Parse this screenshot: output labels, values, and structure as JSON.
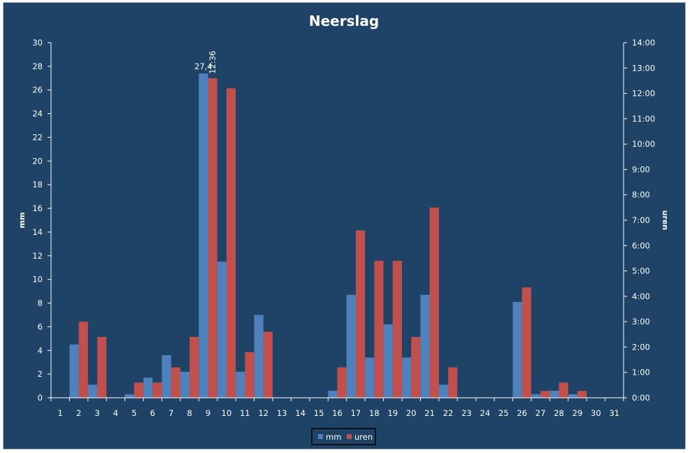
{
  "chart_data": {
    "type": "bar",
    "title": "Neerslag",
    "ylabel": "mm",
    "y2label": "uren",
    "ylim": [
      0,
      30
    ],
    "y2lim": [
      0,
      14
    ],
    "yticks": [
      "0",
      "2",
      "4",
      "6",
      "8",
      "10",
      "12",
      "14",
      "16",
      "18",
      "20",
      "22",
      "24",
      "26",
      "28",
      "30"
    ],
    "y2ticks": [
      "0:00",
      "1:00",
      "2:00",
      "3:00",
      "4:00",
      "5:00",
      "6:00",
      "7:00",
      "8:00",
      "9:00",
      "10:00",
      "11:00",
      "12:00",
      "13:00",
      "14:00"
    ],
    "categories": [
      "1",
      "2",
      "3",
      "4",
      "5",
      "6",
      "7",
      "8",
      "9",
      "10",
      "11",
      "12",
      "13",
      "14",
      "15",
      "16",
      "17",
      "18",
      "19",
      "20",
      "21",
      "22",
      "23",
      "24",
      "25",
      "26",
      "27",
      "28",
      "29",
      "30",
      "31"
    ],
    "series": [
      {
        "name": "mm",
        "color": "#4f81bd",
        "axis": "left",
        "values": [
          0,
          4.5,
          1.1,
          0,
          0.3,
          1.7,
          3.6,
          2.2,
          27.4,
          11.5,
          2.2,
          7.0,
          0,
          0,
          0,
          0.6,
          8.7,
          3.4,
          6.2,
          3.4,
          8.7,
          1.1,
          0,
          0,
          0,
          8.1,
          0.3,
          0.6,
          0.3,
          0,
          0
        ]
      },
      {
        "name": "uren",
        "color": "#c0504d",
        "axis": "right",
        "values": [
          0,
          3.0,
          2.4,
          0,
          0.6,
          0.6,
          1.2,
          2.4,
          12.6,
          12.2,
          1.8,
          2.6,
          0,
          0,
          0,
          1.2,
          6.6,
          5.4,
          5.4,
          2.4,
          7.5,
          1.2,
          0,
          0,
          0,
          4.35,
          0.27,
          0.6,
          0.27,
          0,
          0
        ]
      }
    ],
    "data_labels": [
      {
        "series": "mm",
        "category": "9",
        "text": "27,4"
      },
      {
        "series": "uren",
        "category": "9",
        "text": "12:36"
      }
    ],
    "legend": {
      "position": "bottom"
    },
    "grid": false
  }
}
